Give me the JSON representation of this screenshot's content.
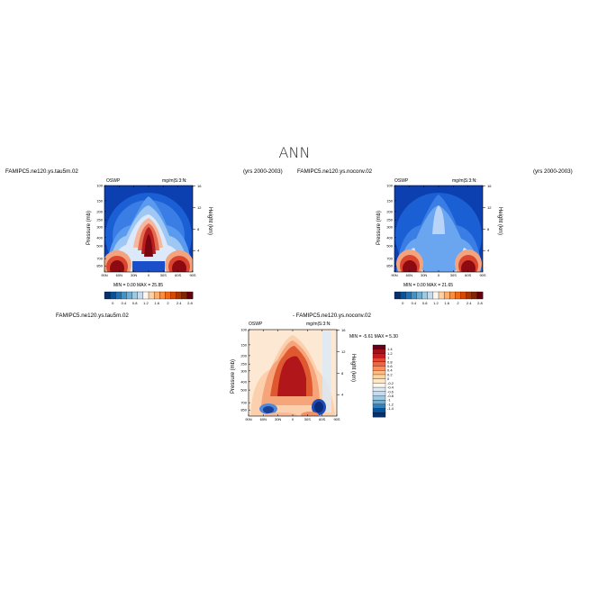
{
  "title": "ANN",
  "panels": [
    {
      "case_name": "FAMIPC5.ne120.ys.tau5m.02",
      "years": "(yrs 2000-2003)",
      "field_left": "OSWP",
      "field_right": "mg/m|S:3:N:",
      "ylabel": "Pressure (mb)",
      "ylabel_right": "Height (km)",
      "min_max": "MIN =    0.00   MAX =   25.85"
    },
    {
      "case_name": "FAMIPC5.ne120.ys.noconv.02",
      "years": "(yrs 2000-2003)",
      "field_left": "OSWP",
      "field_right": "mg/m|S:3:N:",
      "ylabel": "Pressure (mb)",
      "ylabel_right": "Height (km)",
      "min_max": "MIN =    0.00   MAX =   21.65"
    }
  ],
  "diff_panel": {
    "case_left": "FAMIPC5.ne120.ys.tau5m.02",
    "case_right": "- FAMIPC5.ne120.ys.noconv.02",
    "field_left": "OSWP",
    "field_right": "mg/m|S:3:N:",
    "ylabel": "Pressure (mb)",
    "ylabel_right": "Height (km)",
    "min_max": "MIN =  -5.61   MAX =   5.30"
  },
  "chart_data": [
    {
      "type": "heatmap",
      "title": "FAMIPC5.ne120.ys.tau5m.02",
      "x_ticks": [
        "90N",
        "60N",
        "30N",
        "0",
        "30S",
        "60S",
        "90S"
      ],
      "y_ticks": [
        "100",
        "150",
        "200",
        "250",
        "300",
        "400",
        "500",
        "700",
        "850"
      ],
      "y_ticks_right": [
        "16",
        "12",
        "8",
        "4"
      ],
      "colorbar_labels": [
        "0",
        "0.4",
        "0.8",
        "1.2",
        "1.6",
        "2",
        "2.4",
        "2.8"
      ],
      "colorbar_colors": [
        "#08306b",
        "#08519c",
        "#2171b5",
        "#4292c6",
        "#6baed6",
        "#9ecae1",
        "#c6dbef",
        "#fff5eb",
        "#fdd0a2",
        "#fdae6b",
        "#fd8d3c",
        "#f16913",
        "#d94801",
        "#a63603",
        "#7f2704",
        "#67000d"
      ],
      "min": 0.0,
      "max": 25.85
    },
    {
      "type": "heatmap",
      "title": "FAMIPC5.ne120.ys.noconv.02",
      "x_ticks": [
        "90N",
        "60N",
        "30N",
        "0",
        "30S",
        "60S",
        "90S"
      ],
      "y_ticks": [
        "100",
        "150",
        "200",
        "250",
        "300",
        "400",
        "500",
        "700",
        "850"
      ],
      "y_ticks_right": [
        "16",
        "12",
        "8",
        "4"
      ],
      "colorbar_labels": [
        "0",
        "0.4",
        "0.8",
        "1.2",
        "1.6",
        "2",
        "2.4",
        "2.8"
      ],
      "min": 0.0,
      "max": 21.65
    },
    {
      "type": "heatmap",
      "title": "FAMIPC5.ne120.ys.tau5m.02 - FAMIPC5.ne120.ys.noconv.02",
      "x_ticks": [
        "90N",
        "60N",
        "30N",
        "0",
        "30S",
        "60S",
        "90S"
      ],
      "y_ticks": [
        "100",
        "150",
        "200",
        "250",
        "300",
        "400",
        "500",
        "700",
        "850"
      ],
      "y_ticks_right": [
        "16",
        "12",
        "8",
        "4"
      ],
      "colorbar_labels": [
        "1.4",
        "1.2",
        "1",
        "0.8",
        "0.6",
        "0.4",
        "0.2",
        "0",
        "-0.2",
        "-0.4",
        "-0.6",
        "-0.8",
        "-1",
        "-1.2",
        "-1.4"
      ],
      "colorbar_colors": [
        "#67001f",
        "#a50f15",
        "#cb181d",
        "#e34a33",
        "#ef6548",
        "#fc8d59",
        "#fdbb84",
        "#fdd49e",
        "#fee8c8",
        "#fff7ec",
        "#deebf7",
        "#c6dbef",
        "#9ecae1",
        "#6baed6",
        "#3182bd",
        "#08519c",
        "#08306b"
      ],
      "min": -5.61,
      "max": 5.3
    }
  ]
}
